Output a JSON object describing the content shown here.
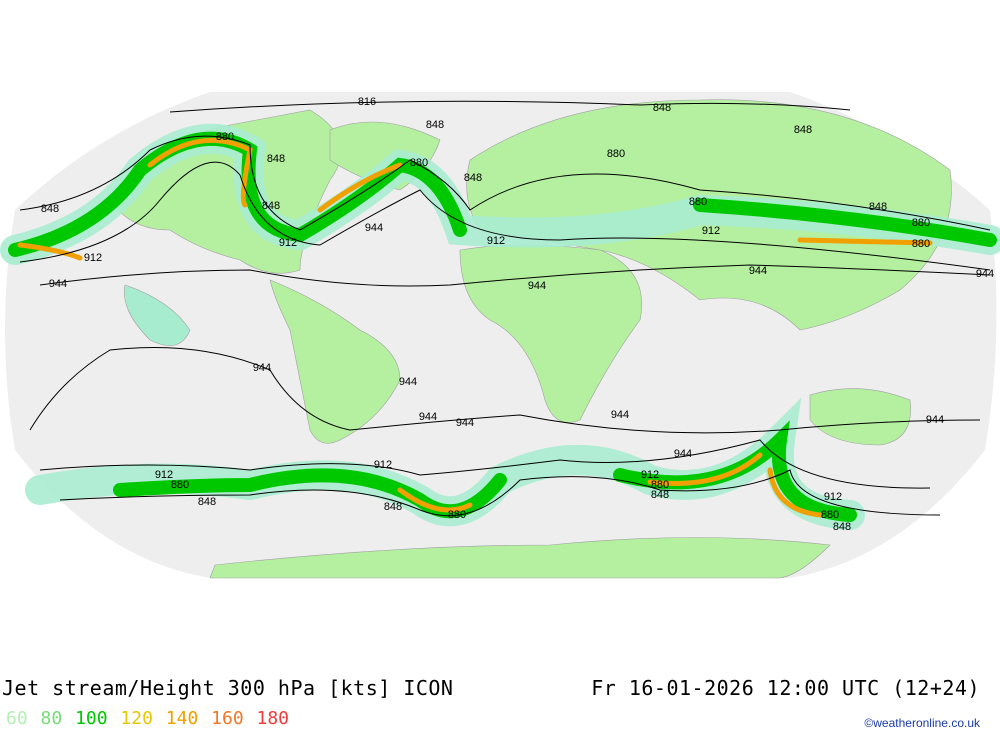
{
  "header": {
    "title": "Jet stream/Height 300 hPa [kts] ICON",
    "datetime": "Fr 16-01-2026 12:00 UTC (12+24)"
  },
  "legend": {
    "items": [
      {
        "label": "60",
        "color": "#b4f0b4"
      },
      {
        "label": "80",
        "color": "#78dc78"
      },
      {
        "label": "100",
        "color": "#00c800"
      },
      {
        "label": "120",
        "color": "#e6c800"
      },
      {
        "label": "140",
        "color": "#f0a000"
      },
      {
        "label": "160",
        "color": "#f07828"
      },
      {
        "label": "180",
        "color": "#f03c3c"
      }
    ]
  },
  "credit": "©weatheronline.co.uk",
  "contour_labels": [
    "816",
    "848",
    "848",
    "848",
    "848",
    "848",
    "848",
    "848",
    "880",
    "880",
    "880",
    "880",
    "880",
    "912",
    "912",
    "912",
    "912",
    "944",
    "944",
    "944",
    "944",
    "944",
    "944",
    "944",
    "944",
    "944",
    "944",
    "912",
    "880",
    "848",
    "912",
    "848",
    "880",
    "912",
    "880",
    "848",
    "848",
    "880",
    "912",
    "848",
    "880",
    "944",
    "944"
  ],
  "colors": {
    "ocean": "#eeeeee",
    "land": "#b4f0a0",
    "border": "#a0a0a0"
  }
}
